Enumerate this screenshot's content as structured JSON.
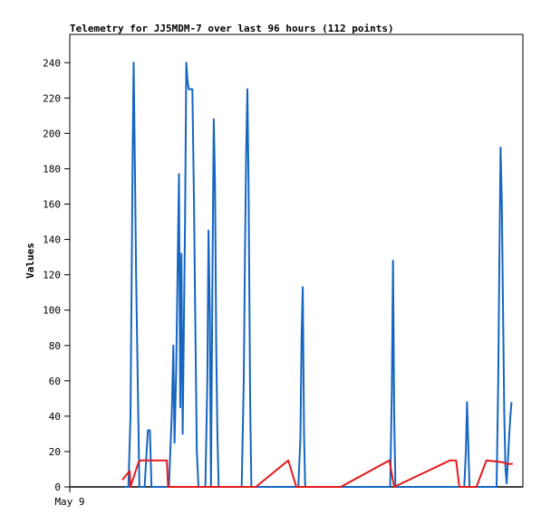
{
  "chart_data": {
    "type": "line",
    "title": "Telemetry for JJ5MDM-7 over last 96 hours (112 points)",
    "xlabel": "",
    "ylabel": "Values",
    "x_tick_labels": [
      {
        "label": "May 9",
        "x": 0
      }
    ],
    "xlim": [
      0,
      112
    ],
    "ylim": [
      0,
      256
    ],
    "yticks": [
      0,
      20,
      40,
      60,
      80,
      100,
      120,
      140,
      160,
      180,
      200,
      220,
      240
    ],
    "grid": false,
    "legend": "none",
    "series": [
      {
        "color": "#1565c0",
        "points": [
          [
            13.5,
            0
          ],
          [
            14.5,
            0
          ],
          [
            15.0,
            40
          ],
          [
            15.3,
            120
          ],
          [
            15.6,
            200
          ],
          [
            15.8,
            240
          ],
          [
            16.1,
            180
          ],
          [
            16.4,
            120
          ],
          [
            16.8,
            60
          ],
          [
            17.2,
            0
          ],
          [
            18.5,
            0
          ],
          [
            19.0,
            20
          ],
          [
            19.3,
            32
          ],
          [
            19.8,
            32
          ],
          [
            20.2,
            0
          ],
          [
            24.5,
            0
          ],
          [
            25.2,
            40
          ],
          [
            25.6,
            80
          ],
          [
            25.9,
            25
          ],
          [
            26.3,
            65
          ],
          [
            26.7,
            130
          ],
          [
            27.0,
            177
          ],
          [
            27.3,
            45
          ],
          [
            27.6,
            132
          ],
          [
            27.9,
            30
          ],
          [
            28.2,
            90
          ],
          [
            28.5,
            150
          ],
          [
            28.8,
            240
          ],
          [
            29.1,
            230
          ],
          [
            29.4,
            225
          ],
          [
            30.3,
            225
          ],
          [
            30.7,
            160
          ],
          [
            31.1,
            80
          ],
          [
            31.4,
            20
          ],
          [
            31.8,
            0
          ],
          [
            33.5,
            0
          ],
          [
            34.0,
            60
          ],
          [
            34.3,
            145
          ],
          [
            34.6,
            100
          ],
          [
            34.9,
            0
          ],
          [
            35.3,
            130
          ],
          [
            35.6,
            208
          ],
          [
            35.9,
            170
          ],
          [
            36.2,
            80
          ],
          [
            36.5,
            30
          ],
          [
            36.8,
            0
          ],
          [
            42.5,
            0
          ],
          [
            43.0,
            60
          ],
          [
            43.3,
            130
          ],
          [
            43.6,
            188
          ],
          [
            43.9,
            225
          ],
          [
            44.2,
            170
          ],
          [
            44.6,
            45
          ],
          [
            44.9,
            0
          ],
          [
            56.5,
            0
          ],
          [
            57.0,
            28
          ],
          [
            57.3,
            84
          ],
          [
            57.6,
            113
          ],
          [
            57.9,
            30
          ],
          [
            58.2,
            0
          ],
          [
            79.2,
            0
          ],
          [
            79.6,
            55
          ],
          [
            79.9,
            128
          ],
          [
            80.2,
            40
          ],
          [
            80.5,
            0
          ],
          [
            97.5,
            0
          ],
          [
            97.9,
            20
          ],
          [
            98.2,
            48
          ],
          [
            98.5,
            25
          ],
          [
            98.8,
            0
          ],
          [
            105.5,
            0
          ],
          [
            105.9,
            60
          ],
          [
            106.2,
            130
          ],
          [
            106.5,
            192
          ],
          [
            106.8,
            160
          ],
          [
            107.1,
            100
          ],
          [
            107.4,
            40
          ],
          [
            107.7,
            10
          ],
          [
            108.0,
            2
          ],
          [
            108.3,
            15
          ],
          [
            108.6,
            28
          ],
          [
            108.9,
            40
          ],
          [
            109.2,
            48
          ]
        ]
      },
      {
        "color": "#e31a1c",
        "points": [
          [
            13.0,
            4
          ],
          [
            14.8,
            9
          ],
          [
            15.0,
            0
          ],
          [
            17.0,
            14
          ],
          [
            17.5,
            15
          ],
          [
            24.0,
            15
          ],
          [
            24.3,
            0
          ],
          [
            46.0,
            0
          ],
          [
            54.0,
            15
          ],
          [
            56.0,
            0
          ],
          [
            67.0,
            0
          ],
          [
            79.0,
            15
          ],
          [
            80.2,
            0
          ],
          [
            94.0,
            15
          ],
          [
            95.5,
            15
          ],
          [
            96.3,
            0
          ],
          [
            100.5,
            0
          ],
          [
            103.0,
            15
          ],
          [
            107.0,
            14
          ],
          [
            108.0,
            13
          ],
          [
            109.5,
            13
          ]
        ]
      }
    ]
  }
}
